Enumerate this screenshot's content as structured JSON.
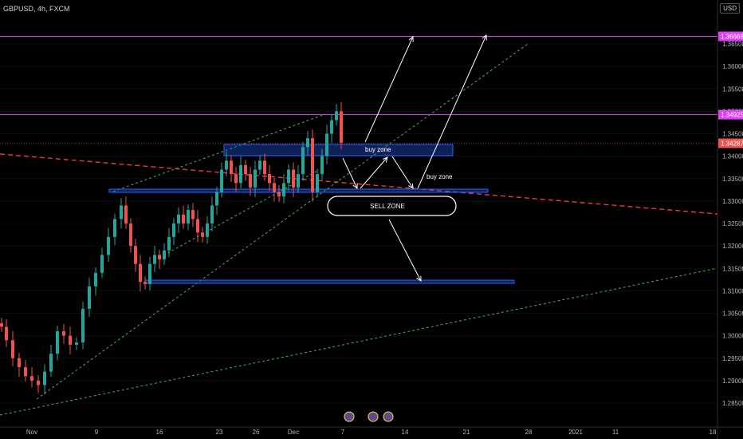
{
  "header": {
    "symbol": "GBPUSD, 4h, FXCM",
    "currency": "USD"
  },
  "colors": {
    "background": "#000000",
    "up_candle": "#26a69a",
    "down_candle": "#ef5350",
    "magenta_line": "#e040fb",
    "red_trend": "#f23645",
    "green_trend": "#4caf50",
    "zone_fill": "#2962ff",
    "arrow": "#ffffff",
    "last_price_tag": "#ef5350"
  },
  "chart_data": {
    "type": "candlestick",
    "y_axis": {
      "ticks": [
        "1.36500",
        "1.36000",
        "1.35500",
        "1.35000",
        "1.34500",
        "1.34000",
        "1.33500",
        "1.33000",
        "1.32500",
        "1.32000",
        "1.31500",
        "1.31000",
        "1.30500",
        "1.30000",
        "1.29500",
        "1.29000",
        "1.28500"
      ],
      "range": [
        1.282,
        1.37
      ]
    },
    "x_axis": {
      "ticks": [
        "Nov",
        "9",
        "16",
        "23",
        "26",
        "Dec",
        "7",
        "14",
        "21",
        "28",
        "2021",
        "11",
        "18"
      ]
    },
    "price_tags": [
      {
        "value": 1.36668,
        "label": "1.36668",
        "color": "#e040fb"
      },
      {
        "value": 1.34925,
        "label": "1.34925",
        "color": "#e040fb"
      },
      {
        "value": 1.34287,
        "label": "1.34287",
        "color": "#ef5350"
      }
    ],
    "horizontal_lines": [
      {
        "value": 1.36668,
        "color": "#e040fb"
      },
      {
        "value": 1.34925,
        "color": "#e040fb"
      }
    ],
    "zones": [
      {
        "label": "buy zone",
        "top": 1.341,
        "bottom": 1.339
      },
      {
        "label": "",
        "top": 1.331,
        "bottom": 1.3303
      },
      {
        "label": "",
        "top": 1.3114,
        "bottom": 1.3108
      }
    ],
    "annotations": [
      {
        "text": "buy zone"
      },
      {
        "text": "SELL ZONE"
      }
    ],
    "candles": []
  }
}
